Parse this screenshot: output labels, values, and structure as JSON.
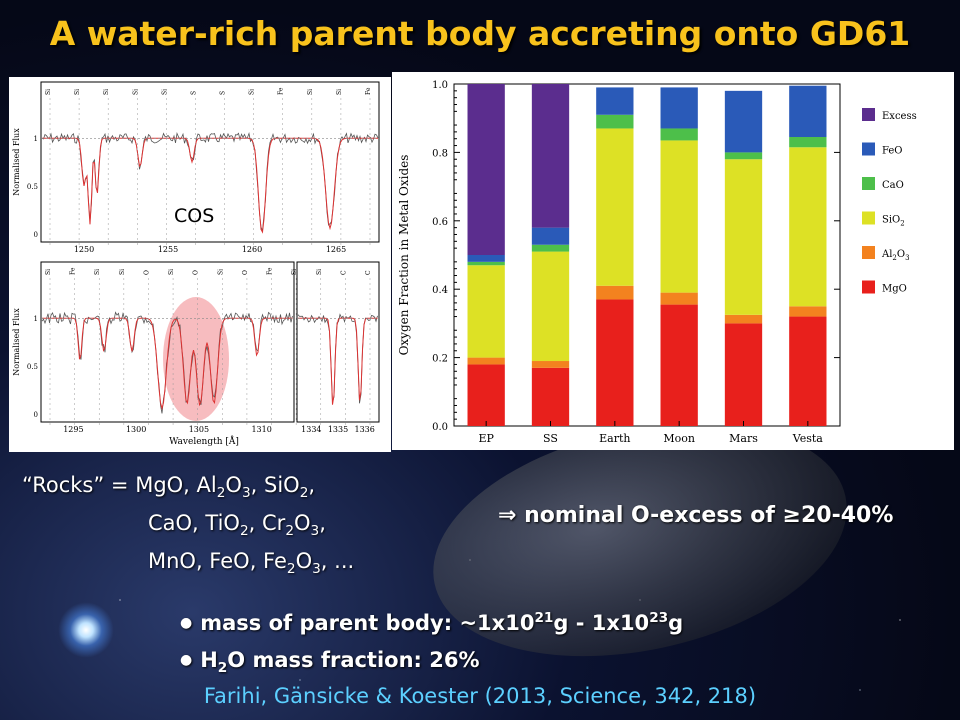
{
  "title": "A water-rich parent body accreting onto GD61",
  "spectra": {
    "label": "COS",
    "ylabel": "Normalised Flux",
    "xlabel": "Wavelength [Å]",
    "top_ticks_x": [
      "1250",
      "1255",
      "1260",
      "1265"
    ],
    "bottom_left_ticks_x": [
      "1295",
      "1300",
      "1305",
      "1310"
    ],
    "bottom_right_ticks_x": [
      "1334",
      "1335",
      "1336"
    ],
    "ticks_y": [
      "1",
      "0.5",
      "0"
    ],
    "top_line_labels": [
      "Si",
      "Si",
      "Si",
      "Si",
      "Si",
      "S",
      "S",
      "Si",
      "Fe",
      "Si",
      "Si",
      "Fe"
    ],
    "bottom_line_labels": [
      "Si",
      "Fe",
      "Si",
      "Si",
      "O",
      "Si",
      "O",
      "Si",
      "O",
      "Fe",
      "Si",
      "Si",
      "C",
      "C"
    ]
  },
  "chart_data": {
    "type": "bar",
    "stacked": true,
    "ylabel": "Oxygen Fraction in Metal Oxides",
    "ylim": [
      0,
      1.0
    ],
    "yticks": [
      "0.0",
      "0.2",
      "0.4",
      "0.6",
      "0.8",
      "1.0"
    ],
    "categories": [
      "EP",
      "SS",
      "Earth",
      "Moon",
      "Mars",
      "Vesta"
    ],
    "legend_position": "right",
    "series": [
      {
        "name": "MgO",
        "color": "#e8201c",
        "values": [
          0.18,
          0.17,
          0.37,
          0.355,
          0.3,
          0.32
        ]
      },
      {
        "name": "Al2O3",
        "color": "#f3821f",
        "values": [
          0.02,
          0.02,
          0.04,
          0.035,
          0.025,
          0.03
        ]
      },
      {
        "name": "SiO2",
        "color": "#dde125",
        "values": [
          0.27,
          0.32,
          0.46,
          0.445,
          0.455,
          0.465
        ]
      },
      {
        "name": "CaO",
        "color": "#4dbf4a",
        "values": [
          0.01,
          0.02,
          0.04,
          0.035,
          0.02,
          0.03
        ]
      },
      {
        "name": "FeO",
        "color": "#2a5ab8",
        "values": [
          0.02,
          0.05,
          0.08,
          0.12,
          0.18,
          0.15
        ]
      },
      {
        "name": "Excess",
        "color": "#5b2d8e",
        "values": [
          0.5,
          0.42,
          0,
          0,
          0,
          0
        ]
      }
    ]
  },
  "rocks": {
    "prefix": "“Rocks” = ",
    "line1": "MgO, Al2O3, SiO2,",
    "line2": "CaO, TiO2, Cr2O3,",
    "line3": "MnO, FeO, Fe2O3, ..."
  },
  "excess_text": "⇒ nominal O-excess of ≥20-40%",
  "bullets": {
    "mass_prefix": "mass of parent body: ~1x10",
    "mass_exp1": "21",
    "mass_mid": "g - 1x10",
    "mass_exp2": "23",
    "mass_suffix": "g",
    "water_prefix": "H",
    "water_sub": "2",
    "water_suffix": "O mass fraction: 26%"
  },
  "citation": "Farihi, Gänsicke & Koester (2013, Science, 342, 218)"
}
